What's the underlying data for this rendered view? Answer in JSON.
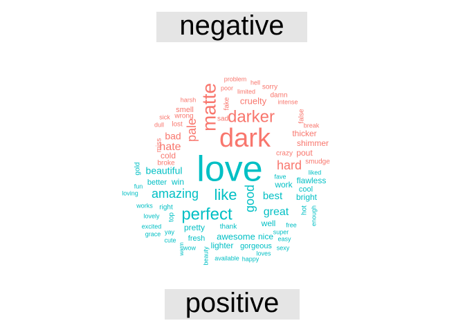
{
  "colors": {
    "negative": "#F8766D",
    "positive": "#00BFC4",
    "label_bg": "#E5E5E5"
  },
  "labels": {
    "negative": "negative",
    "positive": "positive"
  },
  "chart_data": {
    "type": "wordcloud",
    "title": "",
    "groups": [
      {
        "name": "negative",
        "words": [
          {
            "text": "problem",
            "weight": 1
          },
          {
            "text": "hell",
            "weight": 1
          },
          {
            "text": "sorry",
            "weight": 1
          },
          {
            "text": "poor",
            "weight": 1
          },
          {
            "text": "limited",
            "weight": 1
          },
          {
            "text": "damn",
            "weight": 1
          },
          {
            "text": "harsh",
            "weight": 1
          },
          {
            "text": "fake",
            "weight": 1
          },
          {
            "text": "cruelty",
            "weight": 2
          },
          {
            "text": "intense",
            "weight": 1
          },
          {
            "text": "matte",
            "weight": 5
          },
          {
            "text": "darker",
            "weight": 5
          },
          {
            "text": "sick",
            "weight": 1
          },
          {
            "text": "smell",
            "weight": 2
          },
          {
            "text": "sad",
            "weight": 1
          },
          {
            "text": "false",
            "weight": 1
          },
          {
            "text": "dull",
            "weight": 1
          },
          {
            "text": "wrong",
            "weight": 1
          },
          {
            "text": "lost",
            "weight": 1
          },
          {
            "text": "break",
            "weight": 1
          },
          {
            "text": "dark",
            "weight": 8
          },
          {
            "text": "thicker",
            "weight": 2
          },
          {
            "text": "pale",
            "weight": 3
          },
          {
            "text": "bad",
            "weight": 2
          },
          {
            "text": "shimmer",
            "weight": 2
          },
          {
            "text": "miss",
            "weight": 1
          },
          {
            "text": "hate",
            "weight": 3
          },
          {
            "text": "crazy",
            "weight": 1
          },
          {
            "text": "pout",
            "weight": 1
          },
          {
            "text": "cold",
            "weight": 2
          },
          {
            "text": "smudge",
            "weight": 1
          },
          {
            "text": "broke",
            "weight": 1
          },
          {
            "text": "hard",
            "weight": 4
          }
        ]
      },
      {
        "name": "positive",
        "words": [
          {
            "text": "love",
            "weight": 10
          },
          {
            "text": "beautiful",
            "weight": 3
          },
          {
            "text": "gold",
            "weight": 1
          },
          {
            "text": "fave",
            "weight": 1
          },
          {
            "text": "liked",
            "weight": 1
          },
          {
            "text": "better",
            "weight": 1
          },
          {
            "text": "win",
            "weight": 2
          },
          {
            "text": "flawless",
            "weight": 2
          },
          {
            "text": "fun",
            "weight": 1
          },
          {
            "text": "amazing",
            "weight": 4
          },
          {
            "text": "like",
            "weight": 5
          },
          {
            "text": "good",
            "weight": 4
          },
          {
            "text": "best",
            "weight": 3
          },
          {
            "text": "work",
            "weight": 2
          },
          {
            "text": "cool",
            "weight": 1
          },
          {
            "text": "loving",
            "weight": 1
          },
          {
            "text": "bright",
            "weight": 2
          },
          {
            "text": "works",
            "weight": 1
          },
          {
            "text": "right",
            "weight": 1
          },
          {
            "text": "perfect",
            "weight": 5
          },
          {
            "text": "great",
            "weight": 3
          },
          {
            "text": "hot",
            "weight": 1
          },
          {
            "text": "enough",
            "weight": 1
          },
          {
            "text": "top",
            "weight": 1
          },
          {
            "text": "lovely",
            "weight": 1
          },
          {
            "text": "well",
            "weight": 2
          },
          {
            "text": "free",
            "weight": 1
          },
          {
            "text": "excited",
            "weight": 1
          },
          {
            "text": "pretty",
            "weight": 2
          },
          {
            "text": "thank",
            "weight": 1
          },
          {
            "text": "super",
            "weight": 1
          },
          {
            "text": "grace",
            "weight": 1
          },
          {
            "text": "yay",
            "weight": 1
          },
          {
            "text": "awesome",
            "weight": 2
          },
          {
            "text": "nice",
            "weight": 2
          },
          {
            "text": "easy",
            "weight": 1
          },
          {
            "text": "fresh",
            "weight": 2
          },
          {
            "text": "cute",
            "weight": 1
          },
          {
            "text": "lighter",
            "weight": 2
          },
          {
            "text": "gorgeous",
            "weight": 2
          },
          {
            "text": "sexy",
            "weight": 1
          },
          {
            "text": "warm",
            "weight": 1
          },
          {
            "text": "wow",
            "weight": 1
          },
          {
            "text": "loves",
            "weight": 1
          },
          {
            "text": "beauty",
            "weight": 1
          },
          {
            "text": "available",
            "weight": 1
          },
          {
            "text": "happy",
            "weight": 1
          }
        ]
      }
    ]
  }
}
